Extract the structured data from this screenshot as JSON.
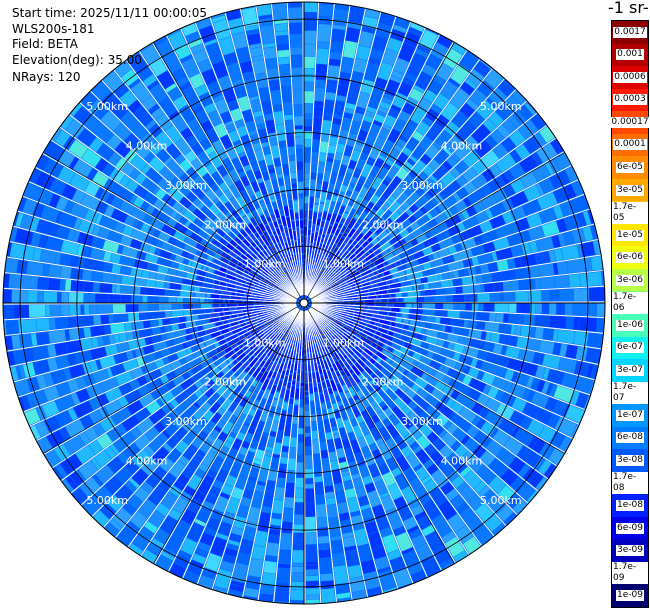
{
  "header": {
    "start_time": "Start time: 2025/11/11 00:00:05",
    "station": "WLS200s-181",
    "field": "Field: BETA",
    "elevation": "Elevation(deg): 35.00",
    "nrays": "NRays: 120"
  },
  "colorbar": {
    "unit_label": "-1 sr-",
    "ticks": [
      "0.0017",
      "0.001",
      "0.0006",
      "0.0003",
      "0.00017",
      "0.0001",
      "6e-05",
      "3e-05",
      "1.7e-05",
      "1e-05",
      "6e-06",
      "3e-06",
      "1.7e-06",
      "1e-06",
      "6e-07",
      "3e-07",
      "1.7e-07",
      "1e-07",
      "6e-08",
      "3e-08",
      "1.7e-08",
      "1e-08",
      "6e-09",
      "3e-09",
      "1.7e-09",
      "1e-09"
    ],
    "colors": [
      "#8b0000",
      "#b40000",
      "#dc0000",
      "#ff1a00",
      "#ff4800",
      "#ff6e00",
      "#ff8c00",
      "#ffa800",
      "#ffc400",
      "#ffe600",
      "#f0ff10",
      "#b8ff48",
      "#7cff7c",
      "#48ffb8",
      "#10f0f0",
      "#00d4ff",
      "#00b0ff",
      "#0096ff",
      "#007cff",
      "#0058ff",
      "#0040ff",
      "#0020ff",
      "#0000e8",
      "#0000c0",
      "#00009a",
      "#000070"
    ]
  },
  "chart_data": {
    "type": "heatmap",
    "projection": "PPI polar",
    "field": "BETA",
    "elevation_deg": 35.0,
    "nrays": 120,
    "max_range_km": 5.3,
    "range_rings_km": [
      1,
      2,
      3,
      4,
      5
    ],
    "range_ring_labels": [
      "1.00km",
      "2.00km",
      "3.00km",
      "4.00km",
      "5.00km"
    ],
    "value_range": [
      1e-09,
      0.0017
    ],
    "scale": "log",
    "dominant_values": "mostly 3e-08 to 1e-07 (blue), near 1e-08 close to center, scattered 1.7e-07 to 1e-06 patches",
    "crosshair": true
  }
}
